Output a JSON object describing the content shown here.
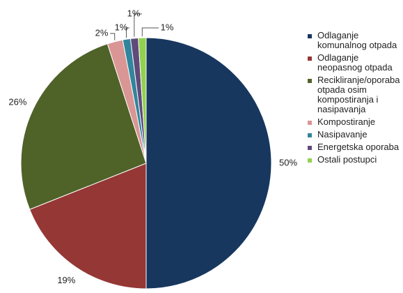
{
  "chart_data": {
    "type": "pie",
    "categories": [
      "Odlaganje komunalnog otpada",
      "Odlaganje neopasnog otpada",
      "Recikliranje/oporaba otpada osim kompostiranja i nasipavanja",
      "Kompostiranje",
      "Nasipavanje",
      "Energetska oporaba",
      "Ostali postupci"
    ],
    "values": [
      50,
      19,
      26,
      2,
      1,
      1,
      1
    ],
    "value_labels": [
      "50%",
      "19%",
      "26%",
      "2%",
      "1%",
      "1%",
      "1%"
    ],
    "colors": [
      "#17375e",
      "#953735",
      "#4f6228",
      "#d99694",
      "#31859c",
      "#604a7b",
      "#92d050"
    ],
    "legend": "right"
  }
}
